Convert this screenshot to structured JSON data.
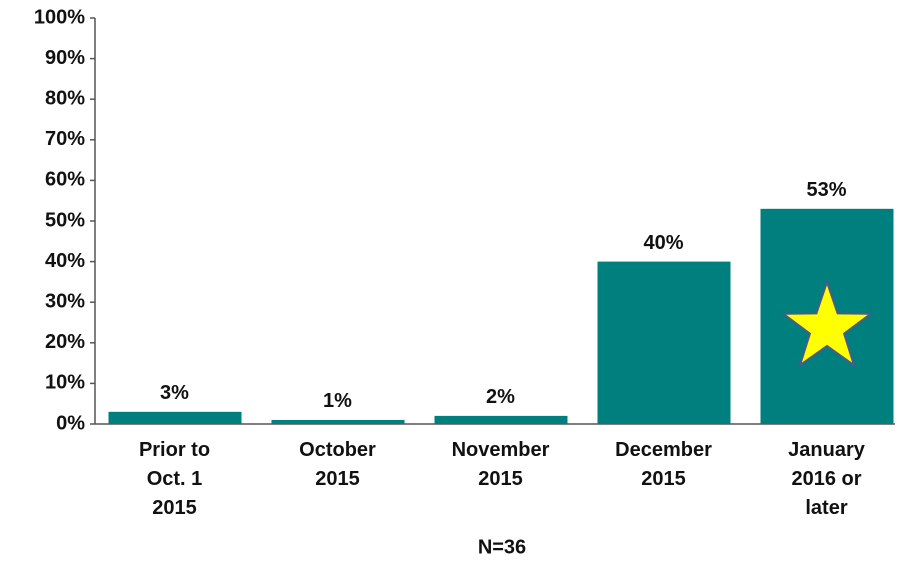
{
  "chart_data": {
    "type": "bar",
    "categories": [
      "Prior to\nOct. 1\n2015",
      "October\n2015",
      "November\n2015",
      "December\n2015",
      "January\n2016 or\nlater"
    ],
    "values": [
      3,
      1,
      2,
      40,
      53
    ],
    "value_labels": [
      "3%",
      "1%",
      "2%",
      "40%",
      "53%"
    ],
    "color": "#007f7f",
    "xlabel": "N=36",
    "ylim": [
      0,
      100
    ],
    "yticks": [
      {
        "value": 0,
        "label": "0%"
      },
      {
        "value": 10,
        "label": "10%"
      },
      {
        "value": 20,
        "label": "20%"
      },
      {
        "value": 30,
        "label": "30%"
      },
      {
        "value": 40,
        "label": "40%"
      },
      {
        "value": 50,
        "label": "50%"
      },
      {
        "value": 60,
        "label": "60%"
      },
      {
        "value": 70,
        "label": "70%"
      },
      {
        "value": 80,
        "label": "80%"
      },
      {
        "value": 90,
        "label": "90%"
      },
      {
        "value": 100,
        "label": "100%"
      }
    ]
  }
}
